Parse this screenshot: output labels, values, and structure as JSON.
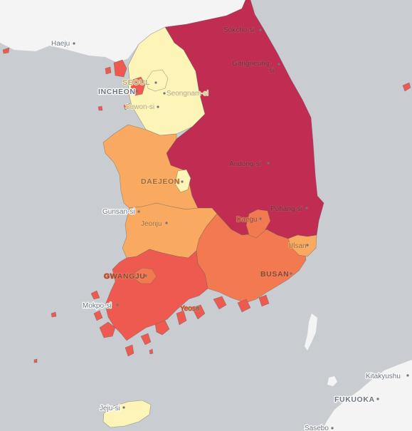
{
  "colors": {
    "sea": "#c9ccd0",
    "land": "#f4f4f4",
    "dark_red": "#c12d52",
    "red_orange": "#ee5a4f",
    "orange": "#f37a50",
    "light_orange": "#f9aa60",
    "yellow": "#fdf5b8"
  },
  "labels": {
    "haeju": "Haeju",
    "sokcho": "Sokcho-si",
    "gangneung_1": "Gangneung-",
    "gangneung_2": "si",
    "seoul": "SEOUL",
    "incheon": "INCHEON",
    "seongnam": "Seongnam-si",
    "suwon": "Suwon-si",
    "andong": "Andong-si",
    "daejeon": "DAEJEON",
    "pohang": "Pohang-si",
    "gunsan": "Gunsan-si",
    "jeonju": "Jeonju",
    "daegu": "Daegu",
    "ulsan": "Ulsan",
    "gwangju": "GWANGJU",
    "busan": "BUSAN",
    "mokpo": "Mokpo-si",
    "yeosu": "Yeosu",
    "jeju": "Jeju-si",
    "kitakyushu": "Kitakyushu",
    "fukuoka": "FUKUOKA",
    "sasebo": "Sasebo"
  }
}
